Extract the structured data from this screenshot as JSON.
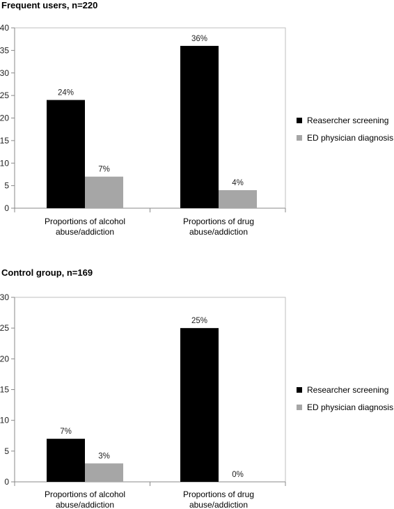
{
  "chart_data": [
    {
      "type": "bar",
      "title": "Frequent users, n=220",
      "categories": [
        [
          "Proportions of alcohol",
          "abuse/addiction"
        ],
        [
          "Proportions of drug",
          "abuse/addiction"
        ]
      ],
      "series": [
        {
          "name": "Reasercher screening",
          "values": [
            24,
            36
          ],
          "labels": [
            "24%",
            "36%"
          ],
          "color": "#000000"
        },
        {
          "name": "ED physician diagnosis",
          "values": [
            7,
            4
          ],
          "labels": [
            "7%",
            "4%"
          ],
          "color": "#a6a6a6"
        }
      ],
      "ylim": [
        0,
        40
      ],
      "yticks": [
        0,
        5,
        10,
        15,
        20,
        25,
        30,
        35,
        40
      ],
      "grid": false,
      "legend": "right"
    },
    {
      "type": "bar",
      "title": "Control group, n=169",
      "categories": [
        [
          "Proportions of alcohol",
          "abuse/addiction"
        ],
        [
          "Proportions of drug",
          "abuse/addiction"
        ]
      ],
      "series": [
        {
          "name": "Researcher screening",
          "values": [
            7,
            25
          ],
          "labels": [
            "7%",
            "25%"
          ],
          "color": "#000000"
        },
        {
          "name": "ED physician diagnosis",
          "values": [
            3,
            0
          ],
          "labels": [
            "3%",
            "0%"
          ],
          "color": "#a6a6a6"
        }
      ],
      "ylim": [
        0,
        30
      ],
      "yticks": [
        0,
        5,
        10,
        15,
        20,
        25,
        30
      ],
      "grid": false,
      "legend": "right"
    }
  ]
}
